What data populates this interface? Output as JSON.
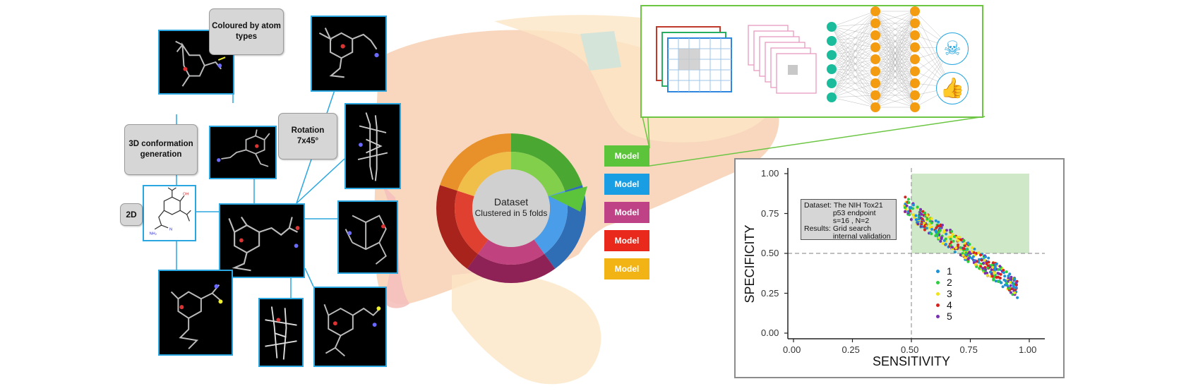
{
  "labels": {
    "coloured_by_atom_types": "Coloured by atom types",
    "conformation": "3D conformation generation",
    "rotation": "Rotation\n7x45°",
    "two_d": "2D"
  },
  "donut": {
    "title": "Dataset",
    "subtitle": "Clustered in 5 folds",
    "colors": [
      "#4aa832",
      "#2f6db5",
      "#8e2257",
      "#a8231c",
      "#e8912a"
    ],
    "inner_colors": [
      "#82cf4c",
      "#4a9de9",
      "#c0427e",
      "#e04030",
      "#f0bf4a"
    ]
  },
  "models": {
    "label": "Model",
    "colors": [
      "#5bc43a",
      "#1a9ee3",
      "#bf4286",
      "#e8291c",
      "#f2b315"
    ]
  },
  "network": {
    "output_icons": [
      "skull-crossbones-icon",
      "thumbs-up-icon"
    ]
  },
  "chart_data": {
    "type": "scatter",
    "xlabel": "SENSITIVITY",
    "ylabel": "SPECIFICITY",
    "xlim": [
      0.0,
      1.0
    ],
    "ylim": [
      0.0,
      1.0
    ],
    "xticks": [
      "0.00",
      "0.25",
      "0.50",
      "0.75",
      "1.00"
    ],
    "yticks": [
      "0.00",
      "0.25",
      "0.50",
      "0.75",
      "1.00"
    ],
    "annotation": "Dataset: The NIH Tox21\n              p53 endpoint\n              s=16 , N=2\nResults: Grid search\n              internal validation",
    "threshold_lines": {
      "x": 0.5,
      "y": 0.5
    },
    "shaded_region": {
      "x": [
        0.5,
        1.0
      ],
      "y": [
        0.5,
        1.0
      ],
      "color": "#cfe8c8"
    },
    "legend": [
      "1",
      "2",
      "3",
      "4",
      "5"
    ],
    "fold_colors": [
      "#1e90d6",
      "#2ecc40",
      "#f2e21a",
      "#d6221c",
      "#7a2fb0"
    ],
    "cloud": {
      "x_range": [
        0.47,
        0.95
      ],
      "y_center_at_x_min": 0.8,
      "y_center_at_x_max": 0.28
    }
  }
}
